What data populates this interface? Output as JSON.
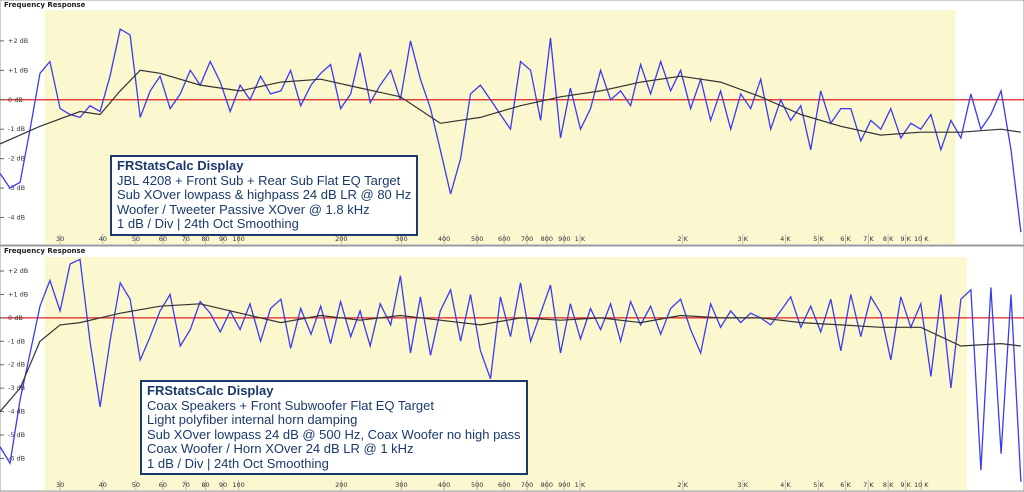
{
  "chart_data": [
    {
      "type": "line",
      "title": "Frequency Response",
      "xscale": "log",
      "xlim": [
        20,
        20000
      ],
      "ylim": [
        -4.9,
        3.05
      ],
      "xticks": [
        30,
        40,
        50,
        60,
        70,
        80,
        90,
        100,
        200,
        300,
        400,
        500,
        600,
        700,
        800,
        900,
        {
          "value": 1000,
          "label": "1 K"
        },
        {
          "value": 2000,
          "label": "2 K"
        },
        {
          "value": 3000,
          "label": "3 K"
        },
        {
          "value": 4000,
          "label": "4 K"
        },
        {
          "value": 5000,
          "label": "5 K"
        },
        {
          "value": 6000,
          "label": "6 K"
        },
        {
          "value": 7000,
          "label": "7 K"
        },
        {
          "value": 8000,
          "label": "8 K"
        },
        {
          "value": 9000,
          "label": "9 K"
        },
        {
          "value": 10000,
          "label": "10 K"
        }
      ],
      "yticks": [
        {
          "value": -4,
          "label": "-4 dB"
        },
        {
          "value": -3,
          "label": "-3 dB"
        },
        {
          "value": -2,
          "label": "-2 dB"
        },
        {
          "value": -1,
          "label": "-1 dB"
        },
        {
          "value": 0,
          "label": "0 dB"
        },
        {
          "value": 1,
          "label": "+1 dB"
        },
        {
          "value": 2,
          "label": "+2 dB"
        }
      ],
      "highlight": [
        27,
        12600
      ],
      "highlight_color": "#fbf8cf",
      "reference_line": 0,
      "reference_color": "#e02020",
      "annotation": [
        "FRStatsCalc Display",
        "JBL 4208 + Front Sub + Rear Sub Flat EQ Target",
        "Sub XOver lowpass & highpass 24 dB LR @ 80 Hz",
        "Woofer / Tweeter Passive XOver @ 1.8 kHz",
        "1 dB / Div | 24th Oct Smoothing"
      ],
      "series": [
        {
          "color": "#3b3bf0",
          "x": [
            20,
            21.4,
            22.9,
            24.5,
            26.2,
            28,
            30,
            32.1,
            34.3,
            36.7,
            39.3,
            42,
            45,
            48.1,
            51.5,
            55.1,
            58.9,
            63,
            67.5,
            72.2,
            77.2,
            82.6,
            88.4,
            94.5,
            101,
            108,
            116,
            124,
            133,
            142,
            152,
            163,
            174,
            186,
            199,
            213,
            227,
            243,
            260,
            279,
            298,
            319,
            341,
            365,
            390,
            418,
            447,
            478,
            511,
            547,
            585,
            626,
            670,
            717,
            767,
            820,
            877,
            938,
            1004,
            1074,
            1150,
            1230,
            1316,
            1408,
            1506,
            1611,
            1724,
            1844,
            1972,
            2110,
            2258,
            2415,
            2584,
            2765,
            2958,
            3165,
            3386,
            3622,
            3875,
            4146,
            4436,
            4745,
            5076,
            5431,
            5810,
            6216,
            6650,
            7114,
            7611,
            8143,
            8712,
            9320,
            9972,
            10670,
            11414,
            12211,
            13064,
            13976,
            14952,
            16000,
            17140,
            18320,
            19590
          ],
          "values": [
            -2.5,
            -3.0,
            -2.8,
            -1.0,
            0.9,
            1.3,
            -0.3,
            -0.5,
            -0.6,
            -0.2,
            -0.4,
            0.8,
            2.4,
            2.2,
            -0.6,
            0.3,
            0.8,
            -0.3,
            0.2,
            1.0,
            0.5,
            1.3,
            0.6,
            -0.4,
            0.5,
            0,
            0.8,
            0.2,
            0.3,
            1.0,
            -0.2,
            0.5,
            0.9,
            1.2,
            -0.3,
            0.2,
            1.6,
            -0.1,
            0.5,
            1.0,
            0,
            2.0,
            0.7,
            -0.3,
            -1.7,
            -3.2,
            -2.0,
            0.2,
            0.5,
            0,
            -0.5,
            -1.0,
            1.3,
            1.0,
            -0.7,
            2.1,
            -1.3,
            0.4,
            -1.0,
            -0.3,
            1.0,
            0,
            0.3,
            -0.2,
            1.2,
            0.2,
            1.3,
            0.3,
            1.0,
            -0.3,
            0.7,
            -0.7,
            0.3,
            -1.0,
            0.2,
            -0.3,
            0.7,
            -1.0,
            0,
            -0.7,
            -0.2,
            -1.7,
            0.3,
            -0.8,
            -0.3,
            -0.3,
            -1.4,
            -0.7,
            -1.0,
            -0.3,
            -1.3,
            -0.8,
            -1.0,
            -0.5,
            -1.7,
            -0.7,
            -1.3,
            0.2,
            -1.0,
            -0.5,
            0.3,
            -1.7,
            -4.5
          ]
        },
        {
          "color": "#333333",
          "x": [
            20,
            26.2,
            34.3,
            39.3,
            45,
            51.5,
            58.9,
            77.2,
            101,
            133,
            174,
            227,
            298,
            390,
            511,
            670,
            877,
            1150,
            1506,
            1972,
            2584,
            3386,
            4436,
            5810,
            7611,
            9972,
            13064,
            17140,
            19590
          ],
          "values": [
            -1.5,
            -0.9,
            -0.4,
            -0.5,
            0.3,
            1.0,
            0.9,
            0.5,
            0.3,
            0.6,
            0.7,
            0.4,
            0.1,
            -0.8,
            -0.6,
            -0.2,
            0.1,
            0.3,
            0.6,
            0.8,
            0.6,
            0.1,
            -0.5,
            -0.9,
            -1.2,
            -1.1,
            -1.1,
            -1.0,
            -1.1
          ]
        }
      ]
    },
    {
      "type": "line",
      "title": "Frequency Response",
      "xscale": "log",
      "xlim": [
        20,
        20000
      ],
      "ylim": [
        -7.35,
        2.6
      ],
      "xticks": [
        30,
        40,
        50,
        60,
        70,
        80,
        90,
        100,
        200,
        300,
        400,
        500,
        600,
        700,
        800,
        900,
        {
          "value": 1000,
          "label": "1 K"
        },
        {
          "value": 2000,
          "label": "2 K"
        },
        {
          "value": 3000,
          "label": "3 K"
        },
        {
          "value": 4000,
          "label": "4 K"
        },
        {
          "value": 5000,
          "label": "5 K"
        },
        {
          "value": 6000,
          "label": "6 K"
        },
        {
          "value": 7000,
          "label": "7 K"
        },
        {
          "value": 8000,
          "label": "8 K"
        },
        {
          "value": 9000,
          "label": "9 K"
        },
        {
          "value": 10000,
          "label": "10 K"
        }
      ],
      "yticks": [
        {
          "value": -6,
          "label": "-6 dB"
        },
        {
          "value": -5,
          "label": "-5 dB"
        },
        {
          "value": -4,
          "label": "-4 dB"
        },
        {
          "value": -3,
          "label": "-3 dB"
        },
        {
          "value": -2,
          "label": "-2 dB"
        },
        {
          "value": -1,
          "label": "-1 dB"
        },
        {
          "value": 0,
          "label": "0 dB"
        },
        {
          "value": 1,
          "label": "+1 dB"
        },
        {
          "value": 2,
          "label": "+2 dB"
        }
      ],
      "highlight": [
        27,
        13600
      ],
      "highlight_color": "#fbf8cf",
      "reference_line": 0,
      "reference_color": "#e02020",
      "annotation": [
        "FRStatsCalc Display",
        "Coax Speakers + Front Subwoofer Flat EQ Target",
        "Light polyfiber internal horn damping",
        "Sub XOver lowpass 24 dB @ 500 Hz, Coax Woofer no high pass",
        "Coax Woofer / Horn XOver 24 dB LR @ 1 kHz",
        "1 dB / Div | 24th Oct Smoothing"
      ],
      "series": [
        {
          "color": "#3b3bf0",
          "x": [
            20,
            21.4,
            22.9,
            24.5,
            26.2,
            28,
            30,
            32.1,
            34.3,
            36.7,
            39.3,
            42,
            45,
            48.1,
            51.5,
            55.1,
            58.9,
            63,
            67.5,
            72.2,
            77.2,
            82.6,
            88.4,
            94.5,
            101,
            108,
            116,
            124,
            133,
            142,
            152,
            163,
            174,
            186,
            199,
            213,
            227,
            243,
            260,
            279,
            298,
            319,
            341,
            365,
            390,
            418,
            447,
            478,
            511,
            547,
            585,
            626,
            670,
            717,
            767,
            820,
            877,
            938,
            1004,
            1074,
            1150,
            1230,
            1316,
            1408,
            1506,
            1611,
            1724,
            1844,
            1972,
            2110,
            2258,
            2415,
            2584,
            2765,
            2958,
            3165,
            3386,
            3622,
            3875,
            4146,
            4436,
            4745,
            5076,
            5431,
            5810,
            6216,
            6650,
            7114,
            7611,
            8143,
            8712,
            9320,
            9972,
            10670,
            11414,
            12211,
            13064,
            13976,
            14952,
            16000,
            17140,
            18320,
            19590
          ],
          "values": [
            -5.5,
            -6.2,
            -3.5,
            -1.5,
            0.5,
            1.6,
            0.3,
            2.3,
            2.5,
            -1.0,
            -3.8,
            -1.0,
            1.5,
            0.8,
            -1.8,
            -0.8,
            0.3,
            1.0,
            -1.2,
            -0.5,
            0.7,
            0.2,
            -0.6,
            0.3,
            -0.5,
            0.6,
            -1.0,
            0.4,
            0.8,
            -1.3,
            0.4,
            -0.7,
            0.5,
            -1.1,
            0.7,
            -0.8,
            0.3,
            -1.2,
            0.6,
            -0.3,
            1.8,
            -1.5,
            0.9,
            -1.6,
            0.3,
            1.2,
            -1.0,
            1.0,
            -1.4,
            -2.6,
            0.9,
            -0.8,
            1.5,
            -1.0,
            0.2,
            1.4,
            -1.5,
            0.6,
            -0.9,
            0.4,
            -0.5,
            0.6,
            -1.0,
            0.7,
            -0.3,
            0.5,
            -0.7,
            0.4,
            0.8,
            -0.5,
            -1.5,
            0.6,
            -0.4,
            0.3,
            -0.2,
            0.2,
            0.0,
            -0.3,
            0.3,
            0.9,
            -0.4,
            0.5,
            -0.6,
            0.8,
            -1.4,
            1.0,
            -0.8,
            0.9,
            0.2,
            -1.8,
            0.9,
            -0.4,
            0.6,
            -2.5,
            1.0,
            -3.0,
            0.8,
            1.2,
            -6.5,
            1.3,
            -5.8,
            1.0,
            -7.0
          ]
        },
        {
          "color": "#333333",
          "x": [
            20,
            22.9,
            26.2,
            30,
            34.3,
            45,
            58.9,
            77.2,
            101,
            133,
            174,
            227,
            298,
            390,
            511,
            670,
            877,
            1150,
            1506,
            1972,
            2584,
            3386,
            4436,
            5810,
            7611,
            9972,
            13064,
            17140,
            19590
          ],
          "values": [
            -4.0,
            -3.0,
            -1.0,
            -0.3,
            -0.2,
            0.2,
            0.5,
            0.6,
            0.2,
            -0.2,
            0.1,
            -0.1,
            0.1,
            -0.1,
            -0.3,
            0,
            -0.1,
            0,
            -0.2,
            0.1,
            0,
            0,
            -0.2,
            -0.3,
            -0.4,
            -0.4,
            -1.2,
            -1.1,
            -1.2
          ]
        }
      ]
    }
  ]
}
